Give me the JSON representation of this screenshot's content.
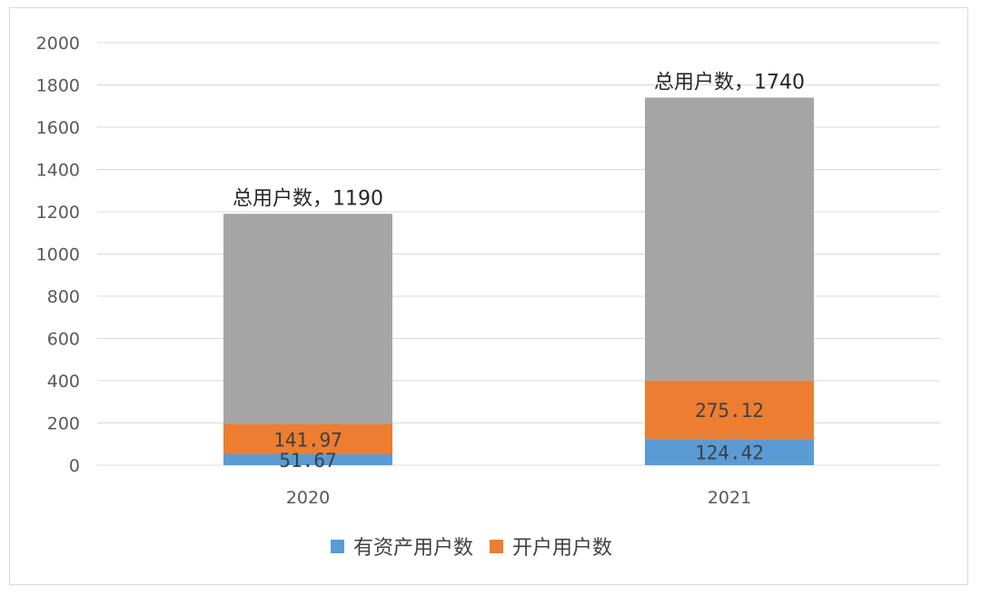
{
  "chart_data": {
    "type": "bar",
    "stacked": true,
    "categories": [
      "2020",
      "2021"
    ],
    "series": [
      {
        "name": "有资产用户数",
        "values": [
          51.67,
          124.42
        ],
        "color": "#5b9bd5",
        "labels": [
          "51.67",
          "124.42"
        ]
      },
      {
        "name": "开户用户数",
        "values": [
          141.97,
          275.12
        ],
        "color": "#ed7d31",
        "labels": [
          "141.97",
          "275.12"
        ]
      }
    ],
    "totals": {
      "values": [
        1190,
        1740
      ],
      "color": "#a5a5a5",
      "labels": [
        "总用户数，1190",
        "总用户数，1740"
      ]
    },
    "ylim": [
      0,
      2000
    ],
    "yticks": [
      "0",
      "200",
      "400",
      "600",
      "800",
      "1000",
      "1200",
      "1400",
      "1600",
      "1800",
      "2000"
    ],
    "grid": true,
    "legend": "bottom",
    "title": "",
    "xlabel": "",
    "ylabel": ""
  }
}
